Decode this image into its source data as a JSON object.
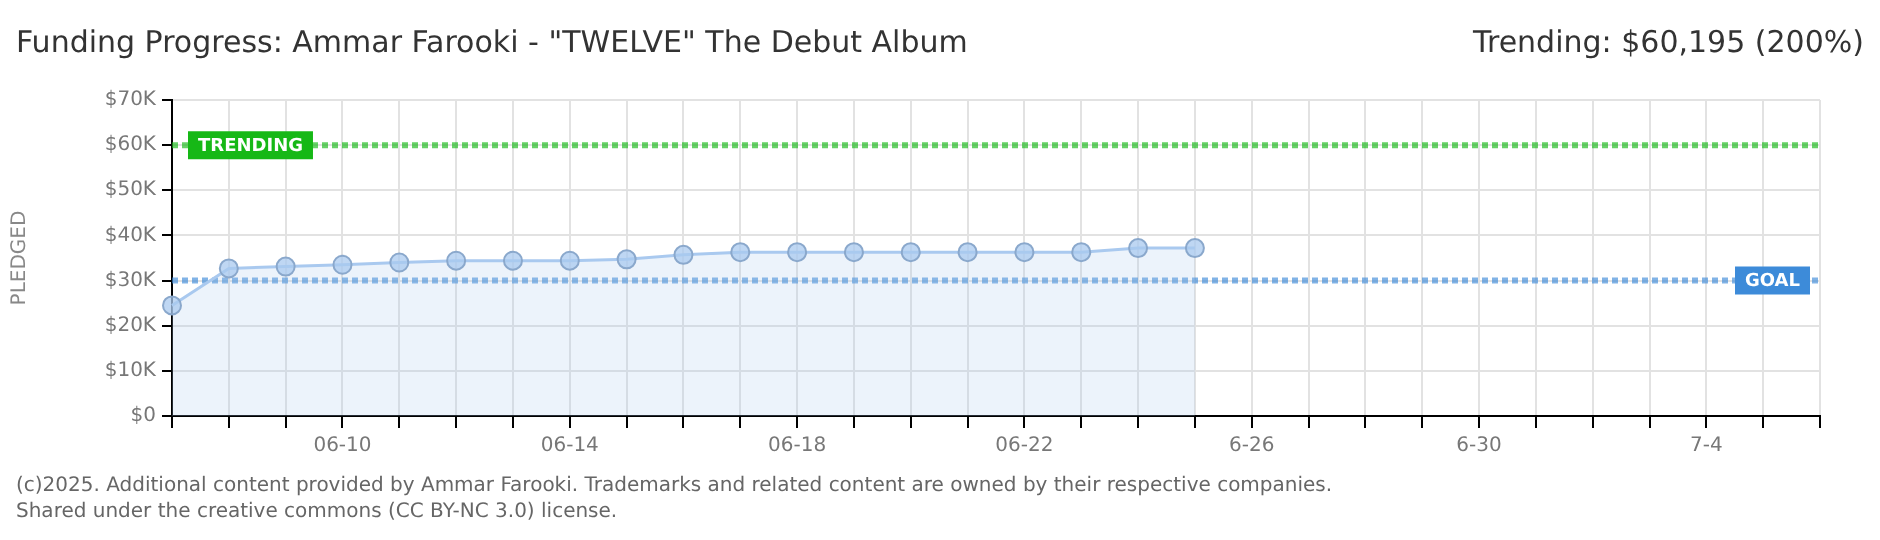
{
  "chart_data": {
    "type": "area",
    "title": "Funding Progress: Ammar Farooki - \"TWELVE\" The Debut Album",
    "subtitle": "Trending: $60,195 (200%)",
    "ylabel": "PLEDGED",
    "categories": [
      null,
      null,
      null,
      "06-10",
      null,
      null,
      null,
      "06-14",
      null,
      null,
      null,
      "06-18",
      null,
      null,
      null,
      "06-22",
      null,
      null,
      null,
      "6-26",
      null,
      null,
      null,
      "6-30",
      null,
      null,
      null,
      "7-4",
      null,
      null
    ],
    "series": [
      {
        "color": "#a9c9ef",
        "values": [
          24500,
          32700,
          33100,
          33500,
          34000,
          34400,
          34400,
          34400,
          34700,
          35700,
          36300,
          36300,
          36300,
          36300,
          36300,
          36300,
          36300,
          37200,
          37200,
          null,
          null,
          null,
          null,
          null,
          null,
          null,
          null,
          null,
          null,
          null
        ]
      }
    ],
    "ylim": [
      0,
      70000
    ],
    "yticks": [
      {
        "value": 0,
        "label": "$0"
      },
      {
        "value": 10000,
        "label": "$10K"
      },
      {
        "value": 20000,
        "label": "$20K"
      },
      {
        "value": 30000,
        "label": "$30K"
      },
      {
        "value": 40000,
        "label": "$40K"
      },
      {
        "value": 50000,
        "label": "$50K"
      },
      {
        "value": 60000,
        "label": "$60K"
      },
      {
        "value": 70000,
        "label": "$70K"
      }
    ],
    "grid": true,
    "marker": "circle",
    "ref_lines": [
      {
        "axis": "y",
        "value": 60000,
        "label": "TRENDING",
        "color": "#16b816",
        "line_style": "dotted"
      },
      {
        "axis": "y",
        "value": 30000,
        "label": "GOAL",
        "color": "#3d8bd9",
        "line_style": "dotted"
      }
    ],
    "annotations": [
      "(c)2025. Additional content provided by Ammar Farooki. Trademarks and related content are owned by their respective companies.",
      "Shared under the creative commons (CC BY-NC 3.0) license."
    ]
  }
}
